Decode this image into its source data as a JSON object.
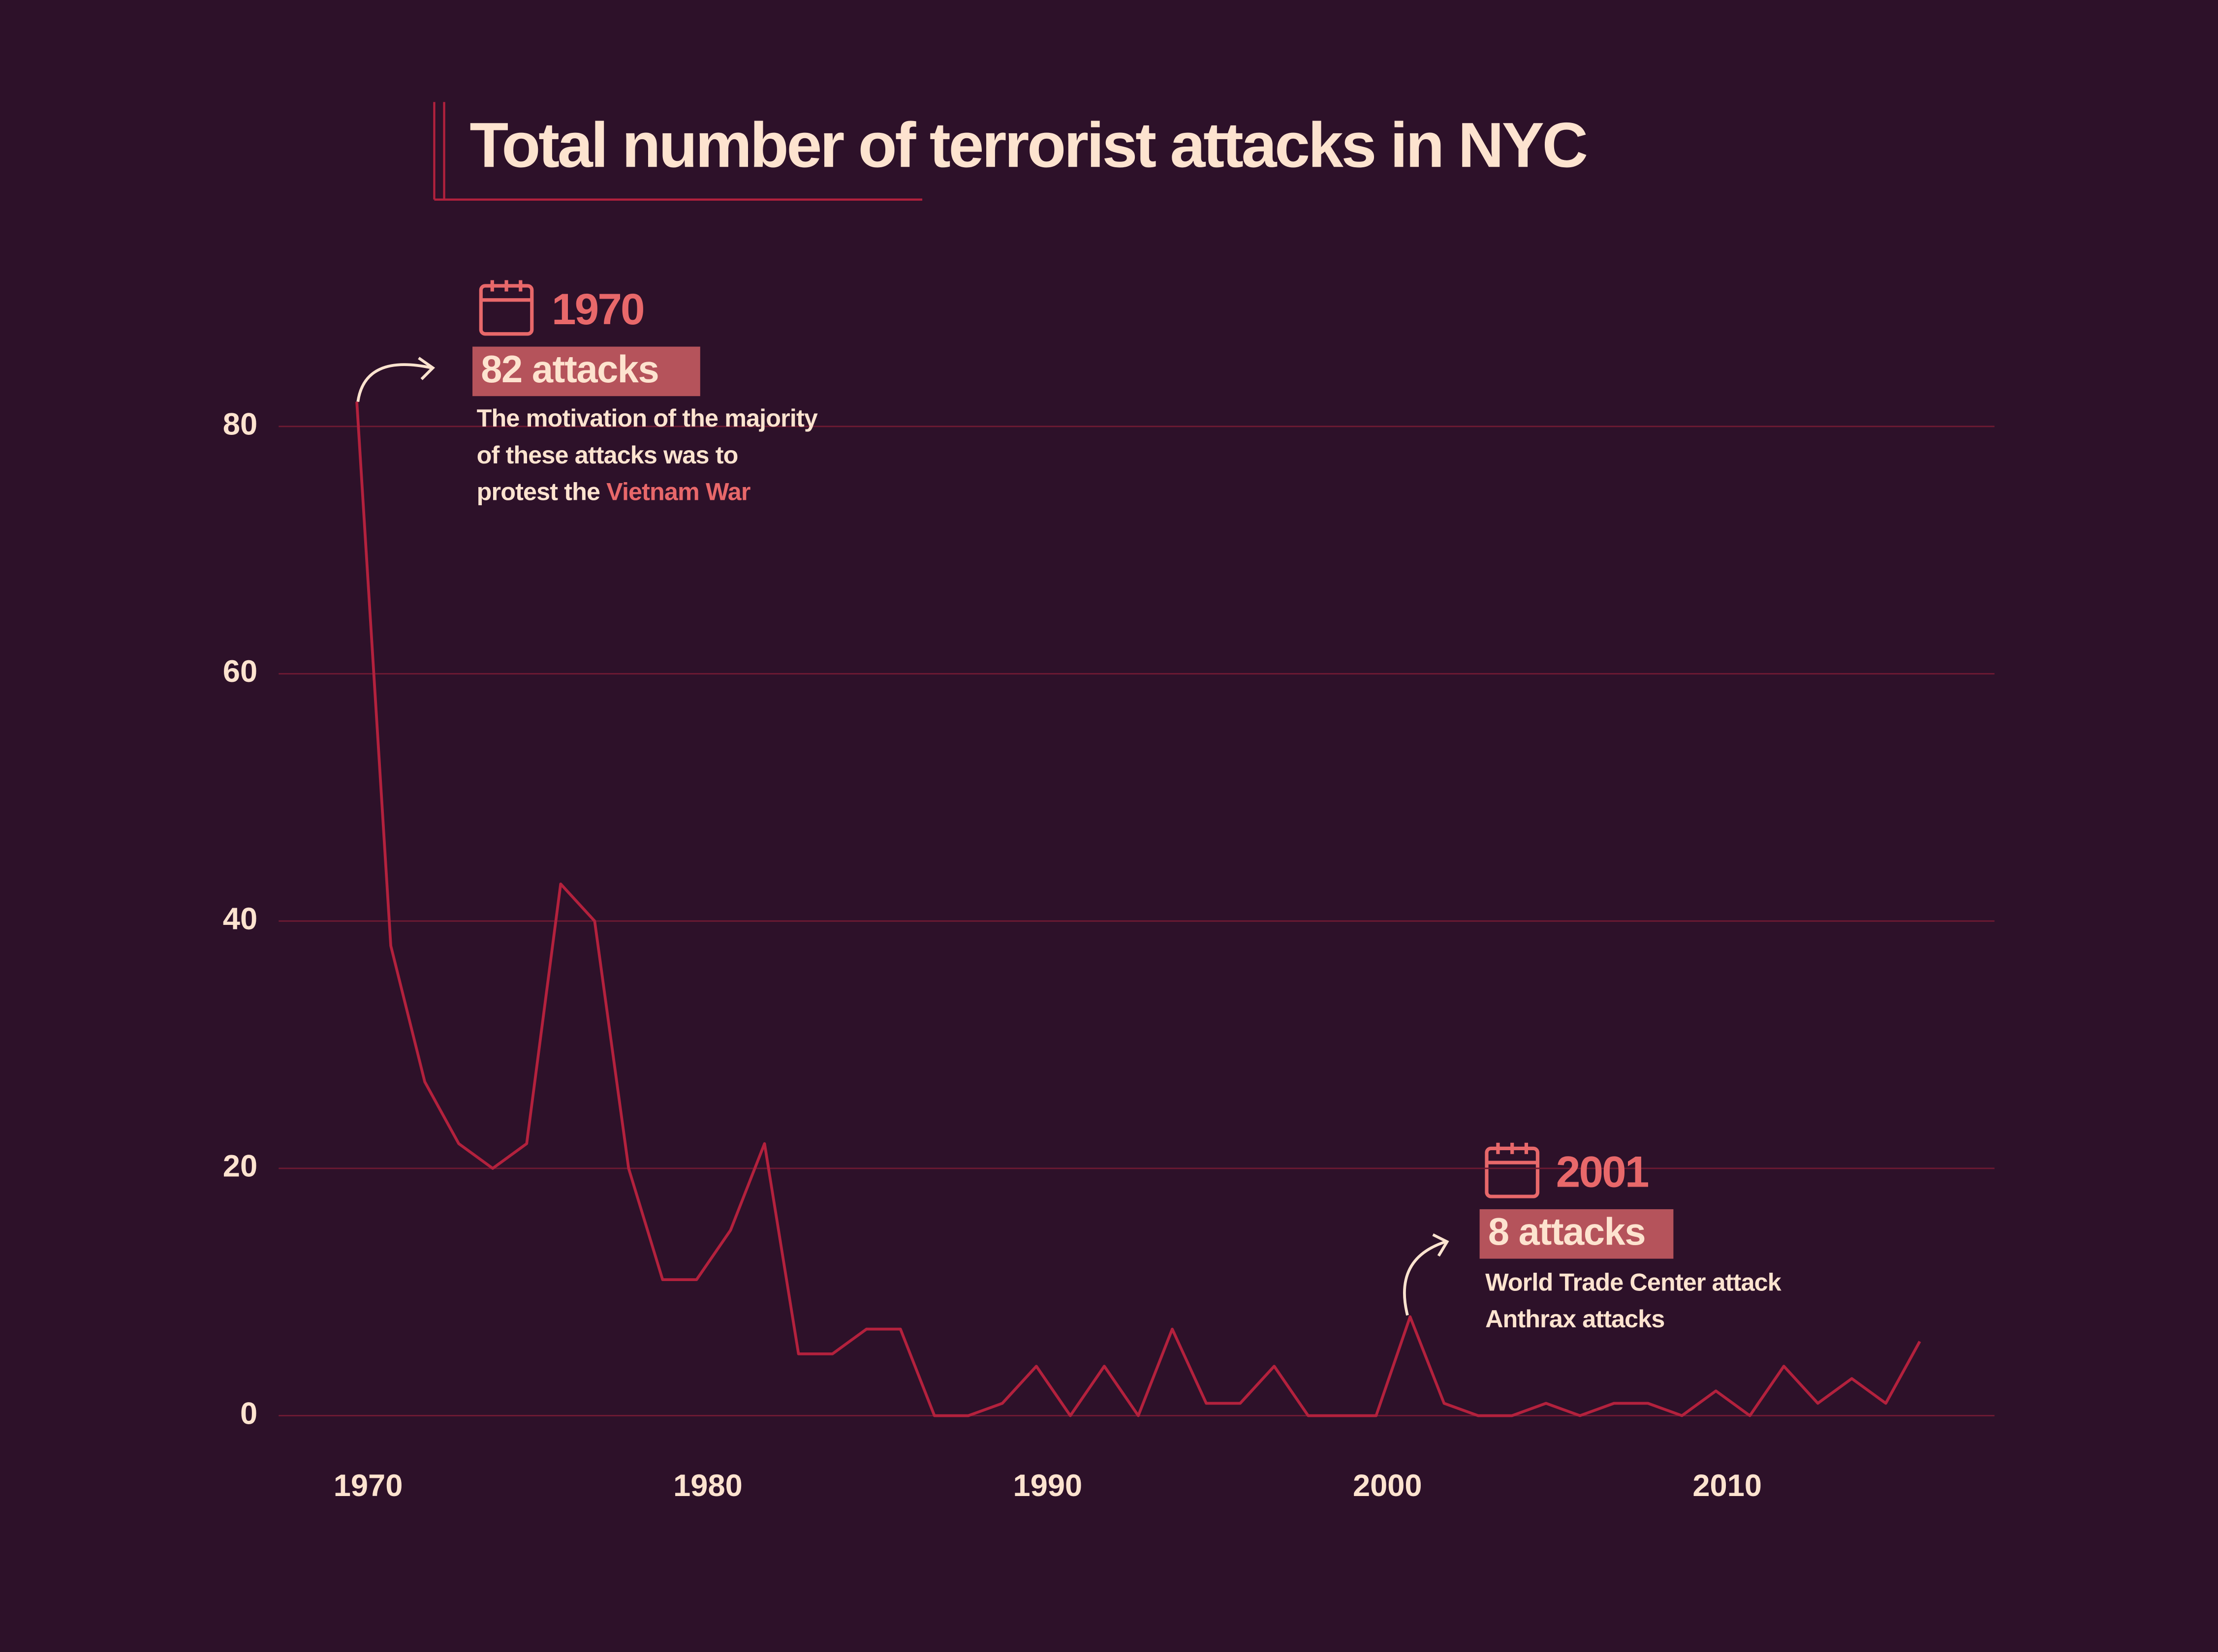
{
  "chart_data": {
    "type": "line",
    "title": "Total number of terrorist attacks in NYC",
    "x": [
      1970,
      1971,
      1972,
      1973,
      1974,
      1975,
      1976,
      1977,
      1978,
      1979,
      1980,
      1981,
      1982,
      1983,
      1984,
      1985,
      1986,
      1987,
      1988,
      1989,
      1990,
      1991,
      1992,
      1993,
      1994,
      1995,
      1996,
      1997,
      1998,
      1999,
      2000,
      2001,
      2002,
      2003,
      2004,
      2005,
      2006,
      2007,
      2008,
      2009,
      2010,
      2011,
      2012,
      2013,
      2014,
      2015,
      2016
    ],
    "values": [
      82,
      38,
      27,
      22,
      20,
      22,
      43,
      40,
      20,
      11,
      11,
      15,
      22,
      5,
      5,
      7,
      7,
      0,
      0,
      1,
      4,
      0,
      4,
      0,
      7,
      1,
      1,
      4,
      0,
      0,
      0,
      8,
      1,
      0,
      0,
      1,
      0,
      1,
      1,
      0,
      2,
      0,
      4,
      1,
      3,
      1,
      6
    ],
    "color": "#b3213d",
    "xlim": [
      1967.7,
      2018.2
    ],
    "xticks": [
      1970,
      1980,
      1990,
      2000,
      2010
    ],
    "ylim": [
      0,
      90
    ],
    "yticks": [
      0,
      20,
      40,
      60,
      80
    ],
    "grid": true,
    "annotations": [
      {
        "year": "1970",
        "label": "82 attacks",
        "lines": [
          "The motivation of the majority",
          "of these attacks was to",
          "protest the "
        ],
        "highlight": "Vietnam War"
      },
      {
        "year": "2001",
        "label": "8 attacks",
        "lines": [
          "World Trade Center attack",
          "Anthrax attacks"
        ]
      }
    ]
  }
}
